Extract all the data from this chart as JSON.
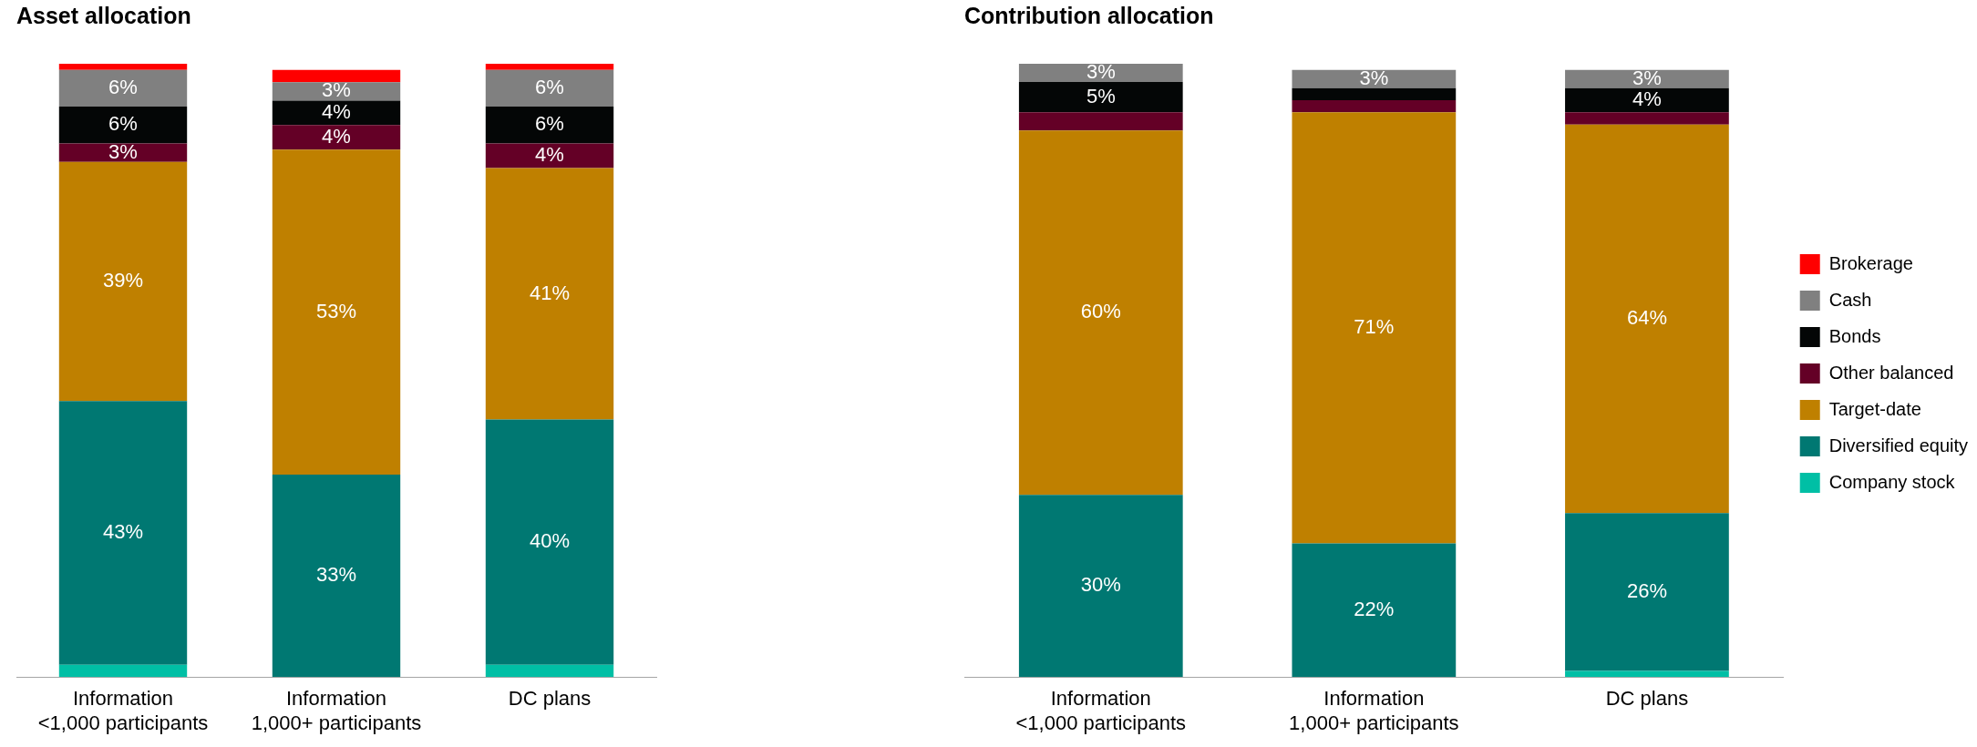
{
  "chart_data": [
    {
      "type": "bar",
      "title": "Asset allocation",
      "stacked": true,
      "legend": false,
      "categories": [
        "Information\n<1,000 participants",
        "Information\n1,000+ participants",
        "DC plans"
      ],
      "series": [
        {
          "color": "#00bfa5",
          "values": [
            2,
            0,
            2
          ],
          "value_labels": [
            null,
            null,
            null
          ]
        },
        {
          "color": "#007872",
          "values": [
            43,
            33,
            40
          ],
          "value_labels": [
            "43%",
            "33%",
            "40%"
          ]
        },
        {
          "color": "#bf8000",
          "values": [
            39,
            53,
            41
          ],
          "value_labels": [
            "39%",
            "53%",
            "41%"
          ]
        },
        {
          "color": "#640026",
          "values": [
            3,
            4,
            4
          ],
          "value_labels": [
            "3%",
            "4%",
            "4%"
          ]
        },
        {
          "color": "#040606",
          "values": [
            6,
            4,
            6
          ],
          "value_labels": [
            "6%",
            "4%",
            "6%"
          ]
        },
        {
          "color": "#808080",
          "values": [
            6,
            3,
            6
          ],
          "value_labels": [
            "6%",
            "3%",
            "6%"
          ]
        },
        {
          "color": "#ff0000",
          "values": [
            1,
            2,
            1
          ],
          "value_labels": [
            null,
            null,
            null
          ]
        }
      ]
    },
    {
      "type": "bar",
      "title": "Contribution allocation",
      "stacked": true,
      "legend": "right",
      "categories": [
        "Information\n<1,000 participants",
        "Information\n1,000+ participants",
        "DC plans"
      ],
      "series": [
        {
          "name": "Company stock",
          "color": "#00bfa5",
          "values": [
            0,
            0,
            1
          ],
          "value_labels": [
            null,
            null,
            null
          ]
        },
        {
          "name": "Diversified equity",
          "color": "#007872",
          "values": [
            30,
            22,
            26
          ],
          "value_labels": [
            "30%",
            "22%",
            "26%"
          ]
        },
        {
          "name": "Target-date",
          "color": "#bf8000",
          "values": [
            60,
            71,
            64
          ],
          "value_labels": [
            "60%",
            "71%",
            "64%"
          ]
        },
        {
          "name": "Other balanced",
          "color": "#640026",
          "values": [
            3,
            2,
            2
          ],
          "value_labels": [
            null,
            null,
            null
          ]
        },
        {
          "name": "Bonds",
          "color": "#040606",
          "values": [
            5,
            2,
            4
          ],
          "value_labels": [
            "5%",
            null,
            "4%"
          ]
        },
        {
          "name": "Cash",
          "color": "#808080",
          "values": [
            3,
            3,
            3
          ],
          "value_labels": [
            "3%",
            "3%",
            "3%"
          ]
        },
        {
          "name": "Brokerage",
          "color": "#ff0000",
          "values": [
            0,
            0,
            0
          ],
          "value_labels": [
            null,
            null,
            null
          ]
        }
      ]
    }
  ]
}
